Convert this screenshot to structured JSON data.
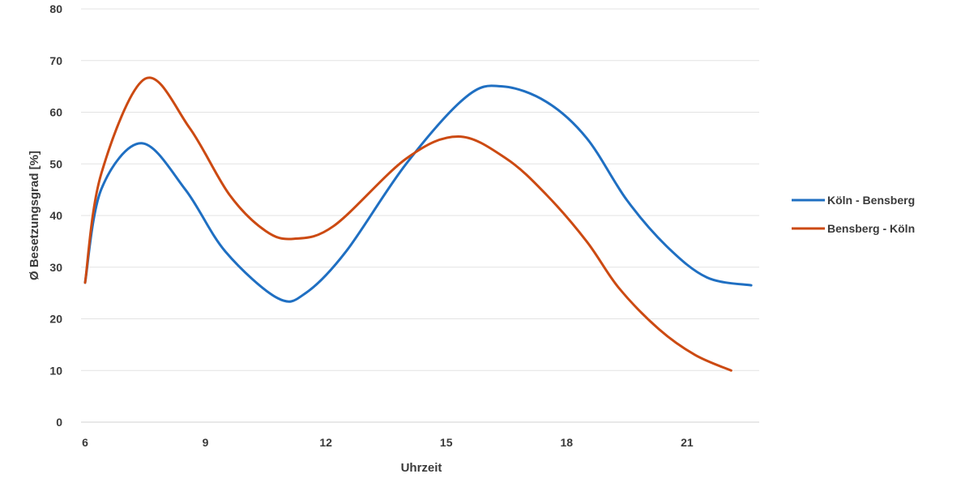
{
  "chart_data": {
    "type": "line",
    "xlabel": "Uhrzeit",
    "ylabel": "Ø Besetzungsgrad [%]",
    "xlim": [
      6,
      22.8
    ],
    "ylim": [
      0,
      80
    ],
    "x_ticks": [
      6,
      9,
      12,
      15,
      18,
      21
    ],
    "y_ticks": [
      0,
      10,
      20,
      30,
      40,
      50,
      60,
      70,
      80
    ],
    "grid": "horizontal",
    "legend_position": "right",
    "series": [
      {
        "name": "Köln - Bensberg",
        "color": "#1f6fc2",
        "x": [
          6,
          6.4,
          7.4,
          8.5,
          9.5,
          10.8,
          11.5,
          12.5,
          14,
          15.5,
          16.4,
          17.5,
          18.5,
          19.5,
          20.5,
          21.5,
          22.6
        ],
        "y": [
          27,
          45,
          54,
          45,
          33,
          24,
          25,
          33,
          50,
          63,
          65,
          62,
          55,
          43,
          34,
          28,
          26.5
        ]
      },
      {
        "name": "Bensberg - Köln",
        "color": "#cc4a12",
        "x": [
          6,
          6.4,
          7.5,
          8.6,
          9.6,
          10.5,
          11.2,
          12.2,
          14,
          15.3,
          16.5,
          17.5,
          18.5,
          19.3,
          20.3,
          21.2,
          22.1
        ],
        "y": [
          27,
          48,
          66.5,
          57,
          44,
          37,
          35.5,
          38,
          51,
          55.3,
          51,
          44,
          35,
          26,
          18,
          13,
          10
        ]
      }
    ]
  }
}
